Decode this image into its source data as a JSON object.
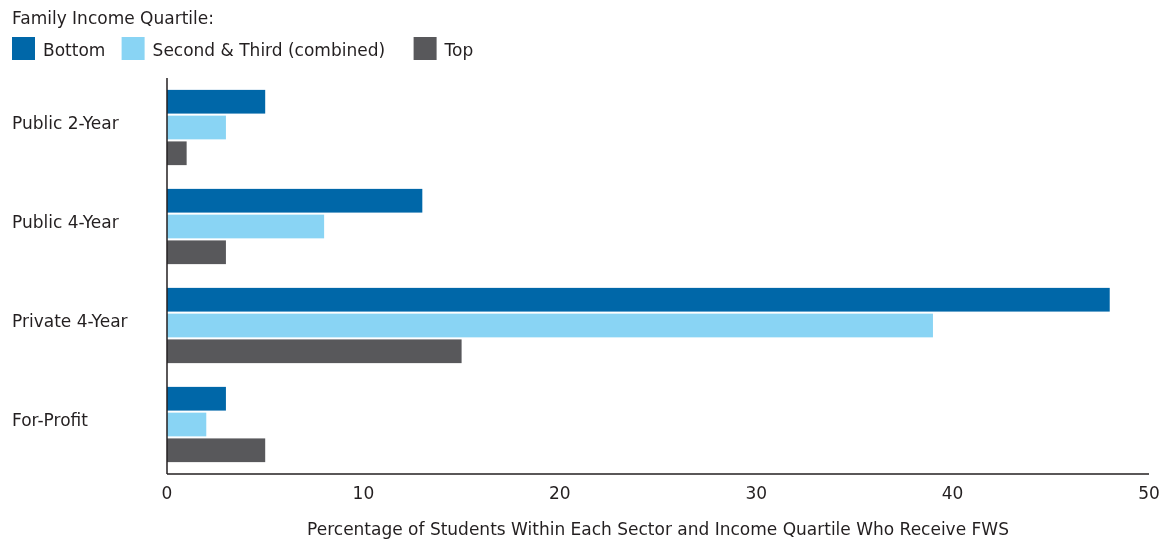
{
  "chart_data": {
    "type": "bar",
    "orientation": "horizontal",
    "legend_title": "Family Income Quartile:",
    "xlabel": "Percentage of Students Within Each Sector and Income Quartile Who Receive FWS",
    "categories": [
      "Public 2-Year",
      "Public 4-Year",
      "Private 4-Year",
      "For-Profit"
    ],
    "series": [
      {
        "name": "Bottom",
        "color": "#0067a8",
        "values": [
          5,
          13,
          48,
          3
        ]
      },
      {
        "name": "Second & Third (combined)",
        "color": "#89d4f4",
        "values": [
          3,
          8,
          39,
          2
        ]
      },
      {
        "name": "Top",
        "color": "#58585b",
        "values": [
          1,
          3,
          15,
          5
        ]
      }
    ],
    "xlim": [
      0,
      50
    ],
    "xticks": [
      0,
      10,
      20,
      30,
      40,
      50
    ],
    "grid": false,
    "legend": "top left"
  }
}
